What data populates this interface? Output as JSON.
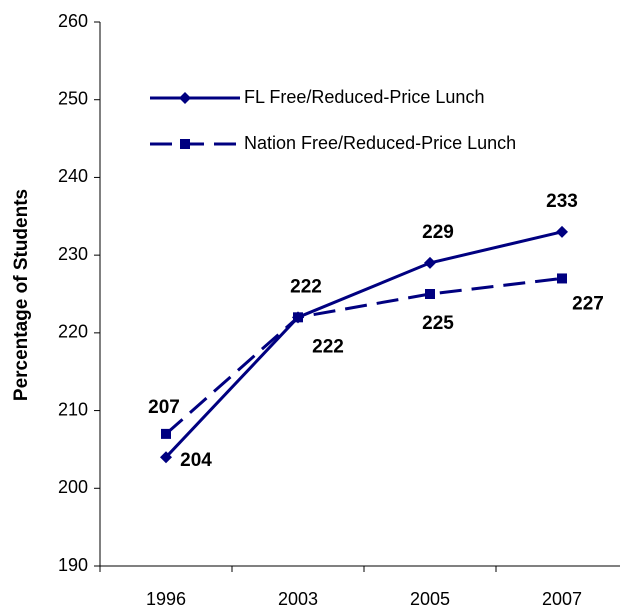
{
  "chart_data": {
    "type": "line",
    "y_label": "Percentage of Students",
    "categories": [
      "1996",
      "2003",
      "2005",
      "2007"
    ],
    "series": [
      {
        "name": "FL Free/Reduced-Price Lunch",
        "color": "#000080",
        "dash": "solid",
        "marker": "diamond",
        "values": [
          204,
          222,
          229,
          233
        ]
      },
      {
        "name": "Nation Free/Reduced-Price Lunch",
        "color": "#000080",
        "dash": "dashed",
        "marker": "square",
        "values": [
          207,
          222,
          225,
          227
        ]
      }
    ],
    "ylim": [
      190,
      260
    ],
    "yticks": [
      190,
      200,
      210,
      220,
      230,
      240,
      250,
      260
    ],
    "grid": false,
    "legend": "upper left"
  }
}
